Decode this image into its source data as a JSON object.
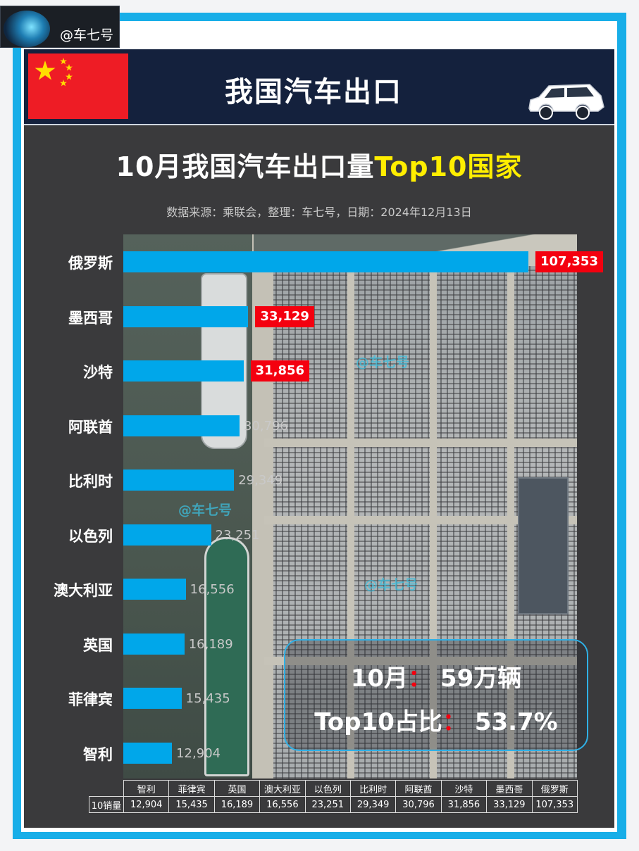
{
  "badge": {
    "handle": "@车七号"
  },
  "header": {
    "title": "我国汽车出口",
    "flag_icon": "china-flag-icon",
    "car_icon": "suv-icon"
  },
  "chart_data": {
    "type": "bar",
    "orientation": "horizontal",
    "title_main": "10月我国汽车出口量",
    "title_highlight": "Top10国家",
    "subtitle": "数据来源：乘联会，整理：车七号，日期：2024年12月13日",
    "categories": [
      "俄罗斯",
      "墨西哥",
      "沙特",
      "阿联酋",
      "比利时",
      "以色列",
      "澳大利亚",
      "英国",
      "菲律宾",
      "智利"
    ],
    "values": [
      107353,
      33129,
      31856,
      30796,
      29349,
      23251,
      16556,
      16189,
      15435,
      12904
    ],
    "value_labels": [
      "107,353",
      "33,129",
      "31,856",
      "30,796",
      "29,349",
      "23,251",
      "16,556",
      "16,189",
      "15,435",
      "12,904"
    ],
    "highlighted": [
      "俄罗斯",
      "墨西哥",
      "沙特"
    ],
    "xlim": [
      0,
      110000
    ],
    "bar_color": "#00a7ea",
    "highlight_color": "#f4000f",
    "title_highlight_color": "#ffee00",
    "table": {
      "row_label": "10销量",
      "categories": [
        "智利",
        "菲律宾",
        "英国",
        "澳大利亚",
        "以色列",
        "比利时",
        "阿联酋",
        "沙特",
        "墨西哥",
        "俄罗斯"
      ],
      "values": [
        "12,904",
        "15,435",
        "16,189",
        "16,556",
        "23,251",
        "29,349",
        "30,796",
        "31,856",
        "33,129",
        "107,353"
      ]
    }
  },
  "watermarks": [
    "@车七号",
    "@车七号",
    "@车七号"
  ],
  "summary": {
    "line1_label": "10月",
    "line1_colon": "：",
    "line1_value": "59万辆",
    "line2_label": "Top10占比",
    "line2_colon": "：",
    "line2_value": "53.7%"
  }
}
